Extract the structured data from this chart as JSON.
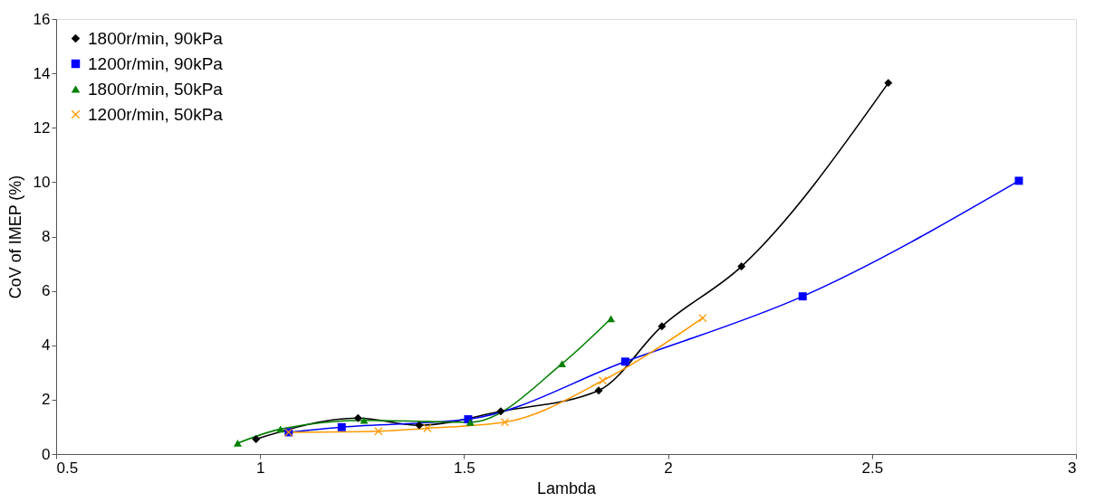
{
  "chart_data": {
    "type": "line",
    "xlabel": "Lambda",
    "ylabel": "CoV of IMEP (%)",
    "xlim": [
      0.5,
      3
    ],
    "xticks": [
      0.5,
      1,
      1.5,
      2,
      2.5,
      3
    ],
    "ylim": [
      0,
      16
    ],
    "yticks": [
      0,
      2,
      4,
      6,
      8,
      10,
      12,
      14,
      16
    ],
    "grid": false,
    "legend": "top left",
    "line_style": "solid",
    "series": [
      {
        "name": "1800r/min, 90kPa",
        "color": "#000000",
        "marker": "diamond",
        "x": [
          0.99,
          1.24,
          1.39,
          1.59,
          1.83,
          1.985,
          2.18,
          2.54
        ],
        "values": [
          0.55,
          1.32,
          1.06,
          1.57,
          2.34,
          4.7,
          6.9,
          13.65
        ]
      },
      {
        "name": "1200r/min, 90kPa",
        "color": "#0000ff",
        "marker": "square",
        "x": [
          1.07,
          1.2,
          1.51,
          1.895,
          2.33,
          2.86
        ],
        "values": [
          0.8,
          0.99,
          1.28,
          3.4,
          5.8,
          10.05
        ]
      },
      {
        "name": "1800r/min, 50kPa",
        "color": "#008000",
        "marker": "triangle",
        "x": [
          0.945,
          1.05,
          1.255,
          1.515,
          1.74,
          1.86
        ],
        "values": [
          0.4,
          0.92,
          1.24,
          1.17,
          3.32,
          4.98
        ]
      },
      {
        "name": "1200r/min, 50kPa",
        "color": "#ff9900",
        "marker": "cross",
        "x": [
          1.07,
          1.29,
          1.41,
          1.6,
          1.84,
          2.085
        ],
        "values": [
          0.8,
          0.84,
          0.95,
          1.17,
          2.7,
          5.0
        ]
      }
    ]
  }
}
